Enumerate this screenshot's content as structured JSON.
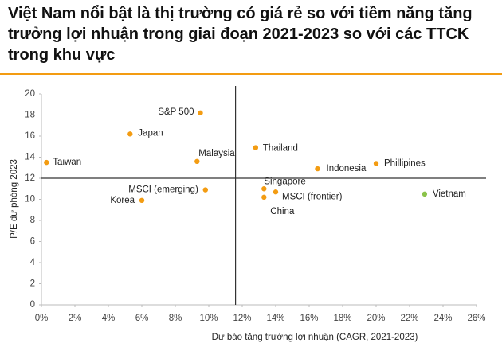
{
  "chart_data": {
    "type": "scatter",
    "title": "Việt Nam nổi bật là thị trường có giá rẻ so với tiềm năng tăng trưởng lợi nhuận trong giai đoạn 2021-2023 so với các TTCK trong khu vực",
    "x_label": "Dự báo tăng trưởng lợi nhuận (CAGR, 2021-2023)",
    "y_label": "P/E dự phóng 2023",
    "points": [
      {
        "name": "Taiwan",
        "x": 0.3,
        "y": 13.5,
        "color": "#f39c12"
      },
      {
        "name": "Japan",
        "x": 5.3,
        "y": 16.2,
        "color": "#f39c12"
      },
      {
        "name": "S&P 500",
        "x": 9.5,
        "y": 18.2,
        "color": "#f39c12"
      },
      {
        "name": "Malaysia",
        "x": 9.3,
        "y": 13.6,
        "color": "#f39c12"
      },
      {
        "name": "MSCI (emerging)",
        "x": 9.8,
        "y": 10.9,
        "color": "#f39c12"
      },
      {
        "name": "Korea",
        "x": 6.0,
        "y": 9.9,
        "color": "#f39c12"
      },
      {
        "name": "Thailand",
        "x": 12.8,
        "y": 14.9,
        "color": "#f39c12"
      },
      {
        "name": "Singapore",
        "x": 13.3,
        "y": 11.0,
        "color": "#f39c12"
      },
      {
        "name": "MSCI (frontier)",
        "x": 14.0,
        "y": 10.7,
        "color": "#f39c12"
      },
      {
        "name": "China",
        "x": 13.3,
        "y": 10.2,
        "color": "#f39c12"
      },
      {
        "name": "Indonesia",
        "x": 16.5,
        "y": 12.9,
        "color": "#f39c12"
      },
      {
        "name": "Phillipines",
        "x": 20.0,
        "y": 13.4,
        "color": "#f39c12"
      },
      {
        "name": "Vietnam",
        "x": 22.9,
        "y": 10.5,
        "color": "#8bc34a"
      }
    ],
    "reference_lines": {
      "x": 11.6,
      "y": 12
    },
    "xlim": [
      0,
      26
    ],
    "xticks": [
      {
        "value": 0,
        "label": "0%"
      },
      {
        "value": 2,
        "label": "2%"
      },
      {
        "value": 4,
        "label": "4%"
      },
      {
        "value": 6,
        "label": "6%"
      },
      {
        "value": 8,
        "label": "8%"
      },
      {
        "value": 10,
        "label": "10%"
      },
      {
        "value": 12,
        "label": "12%"
      },
      {
        "value": 14,
        "label": "14%"
      },
      {
        "value": 16,
        "label": "16%"
      },
      {
        "value": 18,
        "label": "18%"
      },
      {
        "value": 20,
        "label": "20%"
      },
      {
        "value": 22,
        "label": "22%"
      },
      {
        "value": 24,
        "label": "24%"
      },
      {
        "value": 26,
        "label": "26%"
      }
    ],
    "ylim": [
      0,
      20
    ],
    "yticks": [
      0,
      2,
      4,
      6,
      8,
      10,
      12,
      14,
      16,
      18,
      20
    ]
  }
}
